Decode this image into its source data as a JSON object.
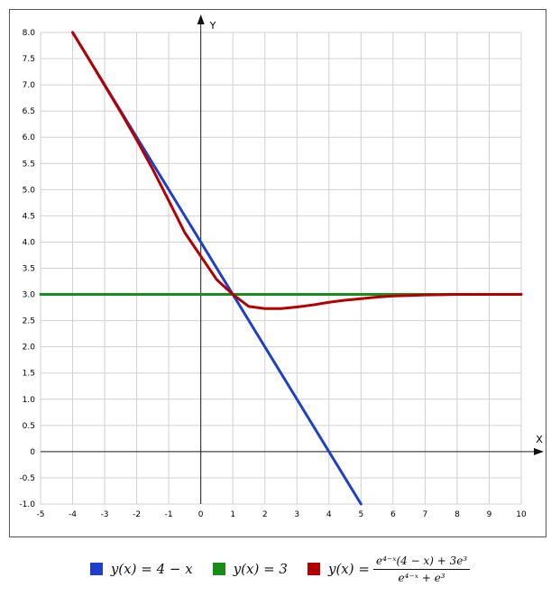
{
  "chart_data": {
    "type": "line",
    "title": "",
    "xlabel": "X",
    "ylabel": "Y",
    "xlim": [
      -5,
      10
    ],
    "ylim": [
      -1,
      8
    ],
    "grid": true,
    "legend_position": "bottom",
    "x_ticks": [
      "-5",
      "-4",
      "-3",
      "-2",
      "-1",
      "0",
      "1",
      "2",
      "3",
      "4",
      "5",
      "6",
      "7",
      "8",
      "9",
      "10"
    ],
    "y_ticks": [
      "-1.0",
      "-0.5",
      "0",
      "0.5",
      "1.0",
      "1.5",
      "2.0",
      "2.5",
      "3.0",
      "3.5",
      "4.0",
      "4.5",
      "5.0",
      "5.5",
      "6.0",
      "6.5",
      "7.0",
      "7.5",
      "8.0"
    ],
    "series": [
      {
        "name": "y(x) = 4 − x",
        "color": "#1f3fc9",
        "x": [
          -4,
          5
        ],
        "y": [
          8,
          -1
        ]
      },
      {
        "name": "y(x) = 3",
        "color": "#1a8c1a",
        "x": [
          -5,
          10
        ],
        "y": [
          3,
          3
        ]
      },
      {
        "name": "y(x) = (e^(4−x)(4−x) + 3e^3) / (e^(4−x) + e^3)",
        "color": "#b30000",
        "x": [
          -4,
          -3.5,
          -3,
          -2.5,
          -2,
          -1.5,
          -1,
          -0.5,
          0,
          0.5,
          1,
          1.5,
          2,
          2.5,
          3,
          3.5,
          4,
          4.5,
          5,
          5.5,
          6,
          6.5,
          7,
          7.5,
          8,
          8.5,
          9,
          9.5,
          10
        ],
        "y": [
          8.0,
          7.5,
          6.99,
          6.48,
          5.95,
          5.39,
          4.79,
          4.18,
          3.73,
          3.28,
          3.0,
          2.77,
          2.73,
          2.73,
          2.76,
          2.8,
          2.85,
          2.89,
          2.92,
          2.95,
          2.97,
          2.98,
          2.99,
          2.995,
          3.0,
          3.0,
          3.0,
          3.0,
          3.0
        ]
      }
    ]
  },
  "legend": [
    {
      "color": "#1f3fc9",
      "label": "y(x) = 4 − x"
    },
    {
      "color": "#1a8c1a",
      "label": "y(x) = 3"
    },
    {
      "color": "#b30000",
      "prefix": "y(x) =",
      "numerator": "e⁴⁻ˣ(4 − x) + 3e³",
      "denominator": "e⁴⁻ˣ + e³"
    }
  ]
}
